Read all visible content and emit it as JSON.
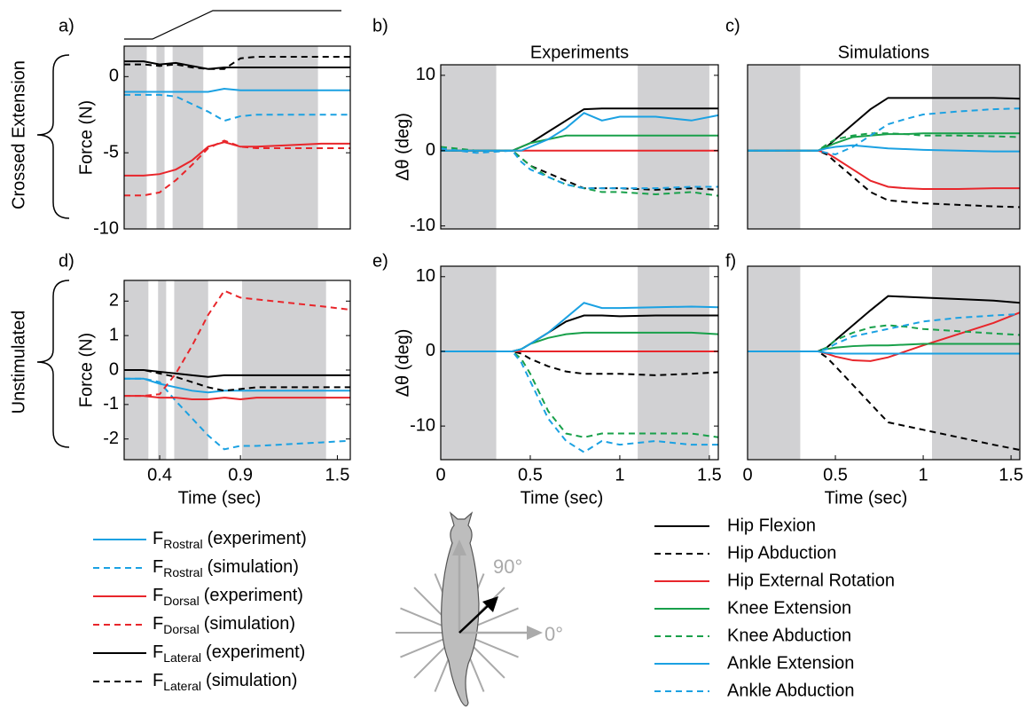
{
  "row_labels": [
    "Crossed Extension",
    "Unstimulated"
  ],
  "diagram": {
    "angle_90": "90°",
    "angle_0": "0°"
  },
  "chart_data": [
    {
      "type": "line",
      "title": "a)",
      "ylabel": "Force (N)",
      "x": [
        0.18,
        0.3,
        0.4,
        0.5,
        0.6,
        0.7,
        0.8,
        0.9,
        1.0,
        1.2,
        1.4,
        1.58
      ],
      "xlim": [
        0.18,
        1.58
      ],
      "ylim": [
        -10,
        2
      ],
      "yticks": [
        -10,
        -5,
        0
      ],
      "shaded": [
        [
          0.18,
          0.32
        ],
        [
          0.38,
          0.43
        ],
        [
          0.48,
          0.67
        ],
        [
          0.88,
          1.38
        ]
      ],
      "series": [
        {
          "name": "F",
          "sub": "Rostral",
          "note": "(experiment)",
          "color": "#1ba1e2",
          "dashed": false,
          "values": [
            -1,
            -1,
            -1,
            -1,
            -1,
            -1,
            -0.8,
            -0.9,
            -0.9,
            -0.9,
            -0.9,
            -0.9
          ]
        },
        {
          "name": "F",
          "sub": "Rostral",
          "note": "(simulation)",
          "color": "#1ba1e2",
          "dashed": true,
          "values": [
            -1.2,
            -1.2,
            -1.2,
            -1.3,
            -1.8,
            -2.3,
            -2.9,
            -2.6,
            -2.5,
            -2.5,
            -2.5,
            -2.5
          ]
        },
        {
          "name": "F",
          "sub": "Dorsal",
          "note": "(experiment)",
          "color": "#e8262b",
          "dashed": false,
          "values": [
            -6.5,
            -6.5,
            -6.4,
            -6.1,
            -5.5,
            -4.6,
            -4.3,
            -4.6,
            -4.6,
            -4.5,
            -4.4,
            -4.4
          ]
        },
        {
          "name": "F",
          "sub": "Dorsal",
          "note": "(simulation)",
          "color": "#e8262b",
          "dashed": true,
          "values": [
            -7.8,
            -7.8,
            -7.6,
            -6.8,
            -5.8,
            -4.7,
            -4.2,
            -4.6,
            -4.7,
            -4.7,
            -4.7,
            -4.7
          ]
        },
        {
          "name": "F",
          "sub": "Lateral",
          "note": "(experiment)",
          "color": "#000000",
          "dashed": false,
          "values": [
            1,
            1,
            0.8,
            0.9,
            0.7,
            0.5,
            0.6,
            0.6,
            0.6,
            0.6,
            0.6,
            0.6
          ]
        },
        {
          "name": "F",
          "sub": "Lateral",
          "note": "(simulation)",
          "color": "#000000",
          "dashed": true,
          "values": [
            0.8,
            0.8,
            0.7,
            0.8,
            0.6,
            0.5,
            0.5,
            1.2,
            1.3,
            1.3,
            1.3,
            1.3
          ]
        }
      ]
    },
    {
      "type": "line",
      "title": "b)",
      "heading": "Experiments",
      "ylabel": "Δθ (deg)",
      "x": [
        0,
        0.2,
        0.4,
        0.45,
        0.5,
        0.6,
        0.7,
        0.8,
        0.9,
        1.0,
        1.2,
        1.4,
        1.55
      ],
      "xlim": [
        0,
        1.55
      ],
      "ylim": [
        -10.4,
        11.4
      ],
      "yticks": [
        -10,
        0,
        10
      ],
      "shaded": [
        [
          0,
          0.31
        ],
        [
          1.1,
          1.5
        ]
      ],
      "series": [
        {
          "name": "Hip Flexion",
          "color": "#000000",
          "dashed": false,
          "values": [
            0,
            0,
            0,
            0.5,
            1,
            2.5,
            4,
            5.5,
            5.6,
            5.6,
            5.6,
            5.6,
            5.6
          ]
        },
        {
          "name": "Hip Abduction",
          "color": "#000000",
          "dashed": true,
          "values": [
            0,
            0,
            0,
            -1,
            -2,
            -3,
            -4,
            -5,
            -5,
            -5,
            -5.2,
            -5,
            -5.2
          ]
        },
        {
          "name": "Hip External Rotation",
          "color": "#e8262b",
          "dashed": false,
          "values": [
            0,
            0,
            0,
            0,
            0,
            0,
            0,
            0,
            0,
            0,
            0,
            0,
            0
          ]
        },
        {
          "name": "Knee Extension",
          "color": "#18a04a",
          "dashed": false,
          "values": [
            0,
            0,
            0,
            0.5,
            1,
            1.5,
            2,
            2,
            2,
            2,
            2,
            2,
            2
          ]
        },
        {
          "name": "Knee Abduction",
          "color": "#18a04a",
          "dashed": true,
          "values": [
            0.5,
            0,
            0,
            -1,
            -2,
            -3.5,
            -4.5,
            -5,
            -5.5,
            -5.5,
            -5.8,
            -5.5,
            -6
          ]
        },
        {
          "name": "Ankle Extension",
          "color": "#1ba1e2",
          "dashed": false,
          "values": [
            0,
            0,
            0,
            0,
            0.5,
            1.5,
            3,
            5,
            4,
            4.5,
            4.5,
            4,
            4.7
          ]
        },
        {
          "name": "Ankle Abduction",
          "color": "#1ba1e2",
          "dashed": true,
          "values": [
            0.3,
            -0.3,
            0,
            -1.5,
            -2.5,
            -3.5,
            -4.5,
            -5,
            -5,
            -5,
            -5,
            -4.8,
            -4.8
          ]
        }
      ]
    },
    {
      "type": "line",
      "title": "c)",
      "heading": "Simulations",
      "x": [
        0,
        0.2,
        0.4,
        0.45,
        0.5,
        0.6,
        0.7,
        0.8,
        0.9,
        1.0,
        1.2,
        1.4,
        1.55
      ],
      "xlim": [
        0,
        1.55
      ],
      "ylim": [
        -10.4,
        11.4
      ],
      "shaded": [
        [
          0,
          0.3
        ],
        [
          1.05,
          1.55
        ]
      ],
      "series": [
        {
          "color": "#000000",
          "dashed": false,
          "values": [
            0,
            0,
            0,
            0.5,
            1.5,
            3.5,
            5.5,
            7,
            7,
            7,
            7,
            7,
            6.9
          ]
        },
        {
          "color": "#000000",
          "dashed": true,
          "values": [
            0,
            0,
            0,
            -0.5,
            -1.5,
            -3.5,
            -5.5,
            -6.6,
            -6.8,
            -7,
            -7.2,
            -7.4,
            -7.5
          ]
        },
        {
          "color": "#e8262b",
          "dashed": false,
          "values": [
            0,
            0,
            0,
            -0.3,
            -1,
            -2.5,
            -4,
            -4.8,
            -5,
            -5.1,
            -5.1,
            -5,
            -5
          ]
        },
        {
          "color": "#18a04a",
          "dashed": false,
          "values": [
            0,
            0,
            0,
            0.5,
            1,
            1.8,
            2,
            2.2,
            2.2,
            2.3,
            2.3,
            2.3,
            2.3
          ]
        },
        {
          "color": "#18a04a",
          "dashed": true,
          "values": [
            0,
            0,
            0,
            0.8,
            1.5,
            2,
            2.3,
            2.3,
            2.2,
            2,
            2,
            1.9,
            1.8
          ]
        },
        {
          "color": "#1ba1e2",
          "dashed": false,
          "values": [
            0,
            0,
            0,
            0.3,
            0.5,
            0.7,
            0.5,
            0.3,
            0.2,
            0.1,
            0,
            -0.1,
            -0.1
          ]
        },
        {
          "color": "#1ba1e2",
          "dashed": true,
          "values": [
            0,
            0,
            0,
            -0.3,
            -0.5,
            0.5,
            2,
            3.5,
            4.2,
            4.8,
            5.2,
            5.5,
            5.6
          ]
        }
      ]
    },
    {
      "type": "line",
      "title": "d)",
      "ylabel": "Force (N)",
      "xlabel": "Time (sec)",
      "x": [
        0.18,
        0.3,
        0.4,
        0.5,
        0.6,
        0.7,
        0.8,
        0.9,
        1.0,
        1.2,
        1.4,
        1.58
      ],
      "xlim": [
        0.18,
        1.58
      ],
      "ylim": [
        -2.6,
        2.6
      ],
      "yticks": [
        -2,
        -1,
        0,
        1,
        2
      ],
      "xticks": [
        0.4,
        0.9,
        1.5
      ],
      "shaded": [
        [
          0.18,
          0.33
        ],
        [
          0.39,
          0.44
        ],
        [
          0.49,
          0.7
        ],
        [
          0.91,
          1.43
        ]
      ],
      "series": [
        {
          "color": "#1ba1e2",
          "dashed": false,
          "values": [
            -0.25,
            -0.25,
            -0.4,
            -0.5,
            -0.6,
            -0.65,
            -0.6,
            -0.6,
            -0.6,
            -0.6,
            -0.6,
            -0.6
          ]
        },
        {
          "color": "#1ba1e2",
          "dashed": true,
          "values": [
            -0.25,
            -0.25,
            -0.35,
            -0.9,
            -1.4,
            -1.9,
            -2.3,
            -2.2,
            -2.2,
            -2.15,
            -2.1,
            -2.05
          ]
        },
        {
          "color": "#e8262b",
          "dashed": false,
          "values": [
            -0.75,
            -0.75,
            -0.8,
            -0.8,
            -0.85,
            -0.85,
            -0.8,
            -0.85,
            -0.8,
            -0.8,
            -0.8,
            -0.8
          ]
        },
        {
          "color": "#e8262b",
          "dashed": true,
          "values": [
            -0.75,
            -0.75,
            -0.7,
            -0.1,
            0.7,
            1.6,
            2.3,
            2.1,
            2.05,
            1.95,
            1.85,
            1.75
          ]
        },
        {
          "color": "#000000",
          "dashed": false,
          "values": [
            0,
            0,
            -0.05,
            -0.1,
            -0.15,
            -0.2,
            -0.15,
            -0.15,
            -0.15,
            -0.15,
            -0.15,
            -0.15
          ]
        },
        {
          "color": "#000000",
          "dashed": true,
          "values": [
            0,
            0,
            -0.1,
            -0.2,
            -0.35,
            -0.5,
            -0.6,
            -0.55,
            -0.5,
            -0.5,
            -0.5,
            -0.5
          ]
        }
      ]
    },
    {
      "type": "line",
      "title": "e)",
      "ylabel": "Δθ (deg)",
      "xlabel": "Time (sec)",
      "x": [
        0,
        0.2,
        0.4,
        0.45,
        0.5,
        0.6,
        0.7,
        0.8,
        0.9,
        1.0,
        1.2,
        1.4,
        1.55
      ],
      "xlim": [
        0,
        1.55
      ],
      "ylim": [
        -14.5,
        11.4
      ],
      "yticks": [
        -10,
        0,
        10
      ],
      "xticks": [
        0,
        0.5,
        1,
        1.5
      ],
      "shaded": [
        [
          0,
          0.31
        ],
        [
          1.1,
          1.5
        ]
      ],
      "series": [
        {
          "color": "#000000",
          "dashed": false,
          "values": [
            0,
            0,
            0,
            0.3,
            1,
            2.5,
            4,
            4.8,
            4.8,
            4.7,
            4.8,
            4.8,
            4.8
          ]
        },
        {
          "color": "#000000",
          "dashed": true,
          "values": [
            0,
            0,
            0,
            -0.3,
            -1,
            -2,
            -2.7,
            -3,
            -3,
            -3,
            -3.2,
            -3,
            -2.8
          ]
        },
        {
          "color": "#e8262b",
          "dashed": false,
          "values": [
            0,
            0,
            0,
            0,
            0,
            0,
            0,
            0,
            0,
            0,
            0,
            0,
            0
          ]
        },
        {
          "color": "#18a04a",
          "dashed": false,
          "values": [
            0,
            0,
            0,
            0.3,
            1,
            1.8,
            2.3,
            2.5,
            2.5,
            2.5,
            2.5,
            2.5,
            2.3
          ]
        },
        {
          "color": "#18a04a",
          "dashed": true,
          "values": [
            0,
            0,
            0,
            -1,
            -3,
            -8,
            -11,
            -11.5,
            -11,
            -11,
            -11,
            -11,
            -11.5
          ]
        },
        {
          "color": "#1ba1e2",
          "dashed": false,
          "values": [
            0,
            0,
            0,
            0.3,
            1,
            2.5,
            4.5,
            6.5,
            5.8,
            5.8,
            5.9,
            6,
            5.9
          ]
        },
        {
          "color": "#1ba1e2",
          "dashed": true,
          "values": [
            0,
            0,
            0,
            -1.5,
            -4,
            -9,
            -12,
            -13.5,
            -12,
            -12.5,
            -12,
            -12.5,
            -12.5
          ]
        }
      ]
    },
    {
      "type": "line",
      "title": "f)",
      "xlabel": "Time (sec)",
      "x": [
        0,
        0.2,
        0.4,
        0.45,
        0.5,
        0.6,
        0.7,
        0.8,
        0.9,
        1.0,
        1.2,
        1.4,
        1.55
      ],
      "xlim": [
        0,
        1.55
      ],
      "ylim": [
        -14.5,
        11.4
      ],
      "xticks": [
        0,
        0.5,
        1,
        1.5
      ],
      "shaded": [
        [
          0,
          0.3
        ],
        [
          1.05,
          1.55
        ]
      ],
      "series": [
        {
          "color": "#000000",
          "dashed": false,
          "values": [
            0,
            0,
            0,
            0.5,
            1.5,
            3.5,
            5.5,
            7.4,
            7.3,
            7.2,
            7,
            6.8,
            6.5
          ]
        },
        {
          "color": "#000000",
          "dashed": true,
          "values": [
            0,
            0,
            0,
            -0.8,
            -2,
            -4.5,
            -7,
            -9.5,
            -10,
            -10.5,
            -11.5,
            -12.5,
            -13.2
          ]
        },
        {
          "color": "#e8262b",
          "dashed": false,
          "values": [
            0,
            0,
            0,
            -0.3,
            -0.7,
            -1.2,
            -1.3,
            -0.8,
            0,
            0.8,
            2.3,
            3.8,
            5.2
          ]
        },
        {
          "color": "#18a04a",
          "dashed": false,
          "values": [
            0,
            0,
            0,
            0.3,
            0.5,
            0.7,
            0.8,
            0.8,
            0.9,
            1,
            1,
            1,
            1
          ]
        },
        {
          "color": "#18a04a",
          "dashed": true,
          "values": [
            0,
            0,
            0,
            0.5,
            1.5,
            2.5,
            3.2,
            3.5,
            3.3,
            3,
            2.7,
            2.4,
            2.2
          ]
        },
        {
          "color": "#1ba1e2",
          "dashed": false,
          "values": [
            0,
            0,
            0,
            -0.2,
            -0.3,
            -0.3,
            -0.3,
            -0.3,
            -0.3,
            -0.3,
            -0.3,
            -0.3,
            -0.3
          ]
        },
        {
          "color": "#1ba1e2",
          "dashed": true,
          "values": [
            0,
            0,
            0,
            0.3,
            1,
            2,
            2.5,
            3,
            3.5,
            4,
            4.5,
            4.8,
            5
          ]
        }
      ]
    }
  ]
}
